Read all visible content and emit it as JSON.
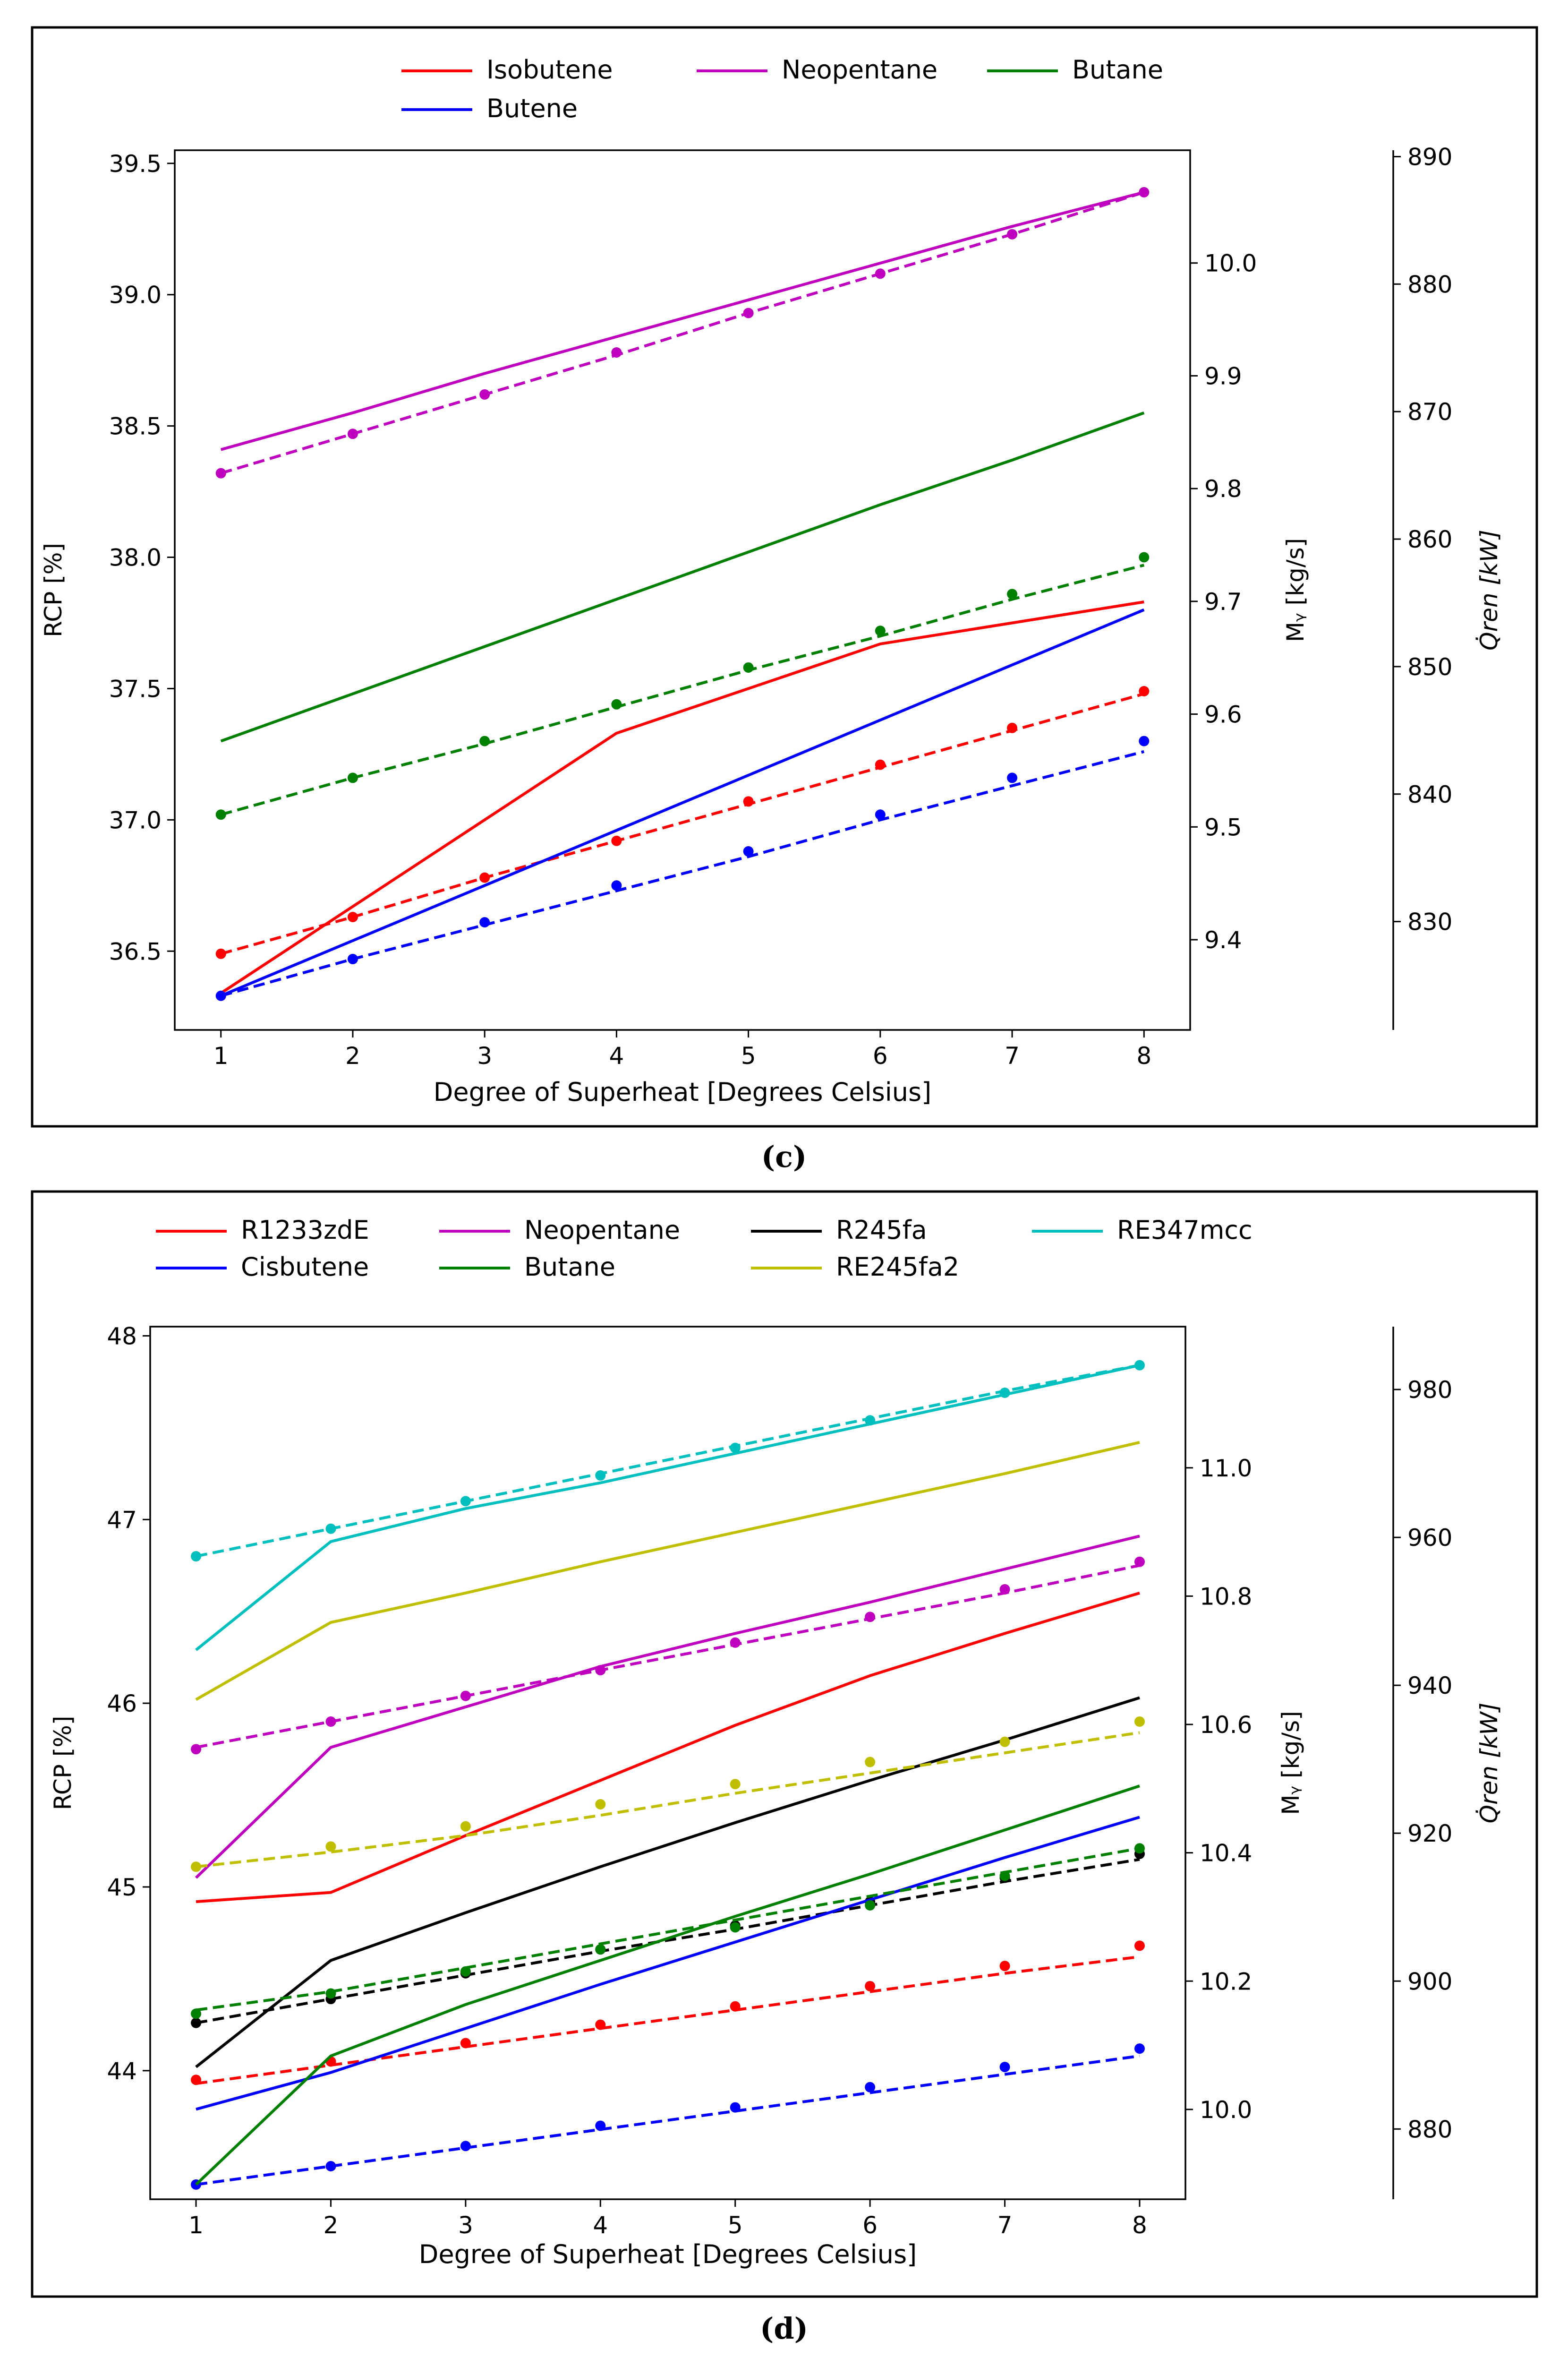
{
  "chart_data": [
    {
      "type": "line",
      "panel_label": "(c)",
      "xlabel": "Degree of Superheat [Degrees Celsius]",
      "ylabel_left": "RCP [%]",
      "ylabel_mid": "Mᵧ [kg/s]",
      "ylabel_right": "Q̇ren [kW]",
      "xlim": [
        0.65,
        8.35
      ],
      "ylim": [
        36.2,
        39.55
      ],
      "mid_lim": [
        9.32,
        10.1
      ],
      "right_lim": [
        821.5,
        890.5
      ],
      "x": [
        1,
        2,
        3,
        4,
        5,
        6,
        7,
        8
      ],
      "x_ticks": [
        "1",
        "2",
        "3",
        "4",
        "5",
        "6",
        "7",
        "8"
      ],
      "y_ticks": [
        36.5,
        37.0,
        37.5,
        38.0,
        38.5,
        39.0,
        39.5
      ],
      "y_tick_labels": [
        "36.5",
        "37.0",
        "37.5",
        "38.0",
        "38.5",
        "39.0",
        "39.5"
      ],
      "mid_ticks": [
        9.4,
        9.5,
        9.6,
        9.7,
        9.8,
        9.9,
        10.0
      ],
      "mid_tick_labels": [
        "9.4",
        "9.5",
        "9.6",
        "9.7",
        "9.8",
        "9.9",
        "10.0"
      ],
      "right_ticks": [
        830,
        840,
        850,
        860,
        870,
        880,
        890
      ],
      "right_tick_labels": [
        "830",
        "840",
        "850",
        "860",
        "870",
        "880",
        "890"
      ],
      "legend": [
        "Isobutene",
        "Neopentane",
        "Butane",
        "Butene"
      ],
      "series": [
        {
          "name": "Isobutene",
          "color": "#ff0000",
          "solid": [
            36.34,
            36.67,
            37.0,
            37.33,
            37.5,
            37.67,
            37.75,
            37.83
          ],
          "dashed": [
            36.49,
            36.63,
            36.78,
            36.92,
            37.06,
            37.2,
            37.34,
            37.48
          ],
          "points": [
            36.49,
            36.63,
            36.78,
            36.92,
            37.07,
            37.21,
            37.35,
            37.49
          ]
        },
        {
          "name": "Neopentane",
          "color": "#bf00bf",
          "solid": [
            38.41,
            38.55,
            38.7,
            38.84,
            38.98,
            39.12,
            39.26,
            39.39
          ],
          "dashed": [
            38.32,
            38.47,
            38.62,
            38.77,
            38.93,
            39.08,
            39.23,
            39.39
          ],
          "points": [
            38.32,
            38.47,
            38.62,
            38.78,
            38.93,
            39.08,
            39.23,
            39.39
          ]
        },
        {
          "name": "Butane",
          "color": "#008000",
          "solid": [
            37.3,
            37.48,
            37.66,
            37.84,
            38.02,
            38.2,
            38.37,
            38.55
          ],
          "dashed": [
            37.02,
            37.16,
            37.29,
            37.43,
            37.57,
            37.7,
            37.84,
            37.97
          ],
          "points": [
            37.02,
            37.16,
            37.3,
            37.44,
            37.58,
            37.72,
            37.86,
            38.0
          ]
        },
        {
          "name": "Butene",
          "color": "#0000ff",
          "solid": [
            36.33,
            36.54,
            36.75,
            36.96,
            37.17,
            37.38,
            37.59,
            37.8
          ],
          "dashed": [
            36.33,
            36.47,
            36.6,
            36.73,
            36.86,
            37.0,
            37.13,
            37.26
          ],
          "points": [
            36.33,
            36.47,
            36.61,
            36.75,
            36.88,
            37.02,
            37.16,
            37.3
          ]
        }
      ]
    },
    {
      "type": "line",
      "panel_label": "(d)",
      "xlabel": "Degree of Superheat [Degrees Celsius]",
      "ylabel_left": "RCP [%]",
      "ylabel_mid": "Mᵧ [kg/s]",
      "ylabel_right": "Q̇ren [kW]",
      "xlim": [
        0.66,
        8.34
      ],
      "ylim": [
        43.3,
        48.05
      ],
      "mid_lim": [
        9.86,
        11.22
      ],
      "right_lim": [
        870.5,
        988.5
      ],
      "x": [
        1,
        2,
        3,
        4,
        5,
        6,
        7,
        8
      ],
      "x_ticks": [
        "1",
        "2",
        "3",
        "4",
        "5",
        "6",
        "7",
        "8"
      ],
      "y_ticks": [
        44,
        45,
        46,
        47,
        48
      ],
      "y_tick_labels": [
        "44",
        "45",
        "46",
        "47",
        "48"
      ],
      "mid_ticks": [
        10.0,
        10.2,
        10.4,
        10.6,
        10.8,
        11.0
      ],
      "mid_tick_labels": [
        "10.0",
        "10.2",
        "10.4",
        "10.6",
        "10.8",
        "11.0"
      ],
      "right_ticks": [
        880,
        900,
        920,
        940,
        960,
        980
      ],
      "right_tick_labels": [
        "880",
        "900",
        "920",
        "940",
        "960",
        "980"
      ],
      "legend": [
        "R1233zdE",
        "Neopentane",
        "R245fa",
        "RE347mcc",
        "Cisbutene",
        "Butane",
        "RE245fa2"
      ],
      "series": [
        {
          "name": "R1233zdE",
          "color": "#ff0000",
          "solid": [
            44.92,
            44.97,
            45.28,
            45.58,
            45.88,
            46.15,
            46.38,
            46.6
          ],
          "dashed": [
            43.93,
            44.03,
            44.13,
            44.23,
            44.33,
            44.43,
            44.53,
            44.62
          ],
          "points": [
            43.95,
            44.05,
            44.15,
            44.25,
            44.35,
            44.46,
            44.57,
            44.68
          ]
        },
        {
          "name": "Neopentane",
          "color": "#bf00bf",
          "solid": [
            45.05,
            45.76,
            45.98,
            46.2,
            46.38,
            46.55,
            46.73,
            46.91
          ],
          "dashed": [
            45.76,
            45.9,
            46.04,
            46.18,
            46.32,
            46.46,
            46.6,
            46.75
          ],
          "points": [
            45.75,
            45.9,
            46.04,
            46.18,
            46.33,
            46.47,
            46.62,
            46.77
          ]
        },
        {
          "name": "R245fa",
          "color": "#000000",
          "solid": [
            44.02,
            44.6,
            44.86,
            45.11,
            45.35,
            45.58,
            45.8,
            46.03
          ],
          "dashed": [
            44.26,
            44.39,
            44.52,
            44.65,
            44.77,
            44.9,
            45.03,
            45.15
          ],
          "points": [
            44.26,
            44.39,
            44.53,
            44.66,
            44.79,
            44.92,
            45.05,
            45.18
          ]
        },
        {
          "name": "RE347mcc",
          "color": "#00bfbf",
          "solid": [
            46.29,
            46.88,
            47.06,
            47.2,
            47.36,
            47.52,
            47.68,
            47.84
          ],
          "dashed": [
            46.8,
            46.95,
            47.1,
            47.25,
            47.4,
            47.55,
            47.7,
            47.84
          ],
          "points": [
            46.8,
            46.95,
            47.1,
            47.24,
            47.39,
            47.54,
            47.69,
            47.84
          ]
        },
        {
          "name": "Cisbutene",
          "color": "#0000ff",
          "solid": [
            43.79,
            43.99,
            44.23,
            44.47,
            44.7,
            44.93,
            45.16,
            45.38
          ],
          "dashed": [
            43.38,
            43.48,
            43.58,
            43.68,
            43.78,
            43.88,
            43.98,
            44.08
          ],
          "points": [
            43.38,
            43.48,
            43.59,
            43.7,
            43.8,
            43.91,
            44.02,
            44.12
          ]
        },
        {
          "name": "Butane",
          "color": "#008000",
          "solid": [
            43.38,
            44.08,
            44.36,
            44.6,
            44.84,
            45.07,
            45.31,
            45.55
          ],
          "dashed": [
            44.33,
            44.43,
            44.56,
            44.69,
            44.82,
            44.95,
            45.08,
            45.21
          ],
          "points": [
            44.31,
            44.42,
            44.54,
            44.66,
            44.78,
            44.9,
            45.06,
            45.21
          ]
        },
        {
          "name": "RE245fa2",
          "color": "#bfbf00",
          "solid": [
            46.02,
            46.44,
            46.6,
            46.77,
            46.93,
            47.09,
            47.25,
            47.42
          ],
          "dashed": [
            45.11,
            45.19,
            45.28,
            45.39,
            45.51,
            45.62,
            45.73,
            45.84
          ],
          "points": [
            45.11,
            45.22,
            45.33,
            45.45,
            45.56,
            45.68,
            45.79,
            45.9
          ]
        }
      ]
    }
  ]
}
